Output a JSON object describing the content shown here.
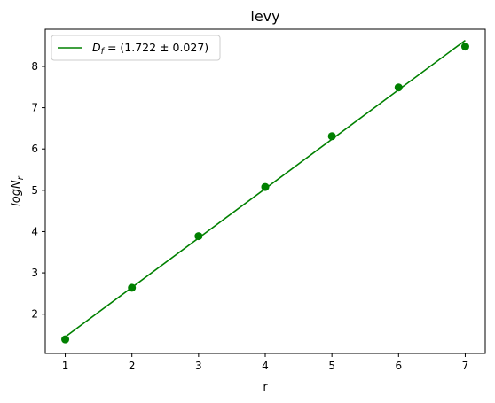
{
  "chart_data": {
    "type": "scatter",
    "title": "levy",
    "xlabel": "r",
    "ylabel_parts": {
      "main": "logN",
      "sub": "r"
    },
    "xlim": [
      0.7,
      7.3
    ],
    "ylim": [
      1.05,
      8.9
    ],
    "xticks": [
      1,
      2,
      3,
      4,
      5,
      6,
      7
    ],
    "yticks": [
      2,
      3,
      4,
      5,
      6,
      7,
      8
    ],
    "points": {
      "x": [
        1,
        2,
        3,
        4,
        5,
        6,
        7
      ],
      "y": [
        1.39,
        2.64,
        3.89,
        5.08,
        6.31,
        7.49,
        8.48
      ],
      "color": "#008000"
    },
    "fit_line": {
      "x": [
        1,
        7
      ],
      "y": [
        1.45,
        8.63
      ],
      "color": "#008000",
      "legend": {
        "var_main": "D",
        "var_sub": "f",
        "text": " = (1.722 ± 0.027)"
      }
    },
    "grid": false,
    "legend_position": "top-left"
  }
}
